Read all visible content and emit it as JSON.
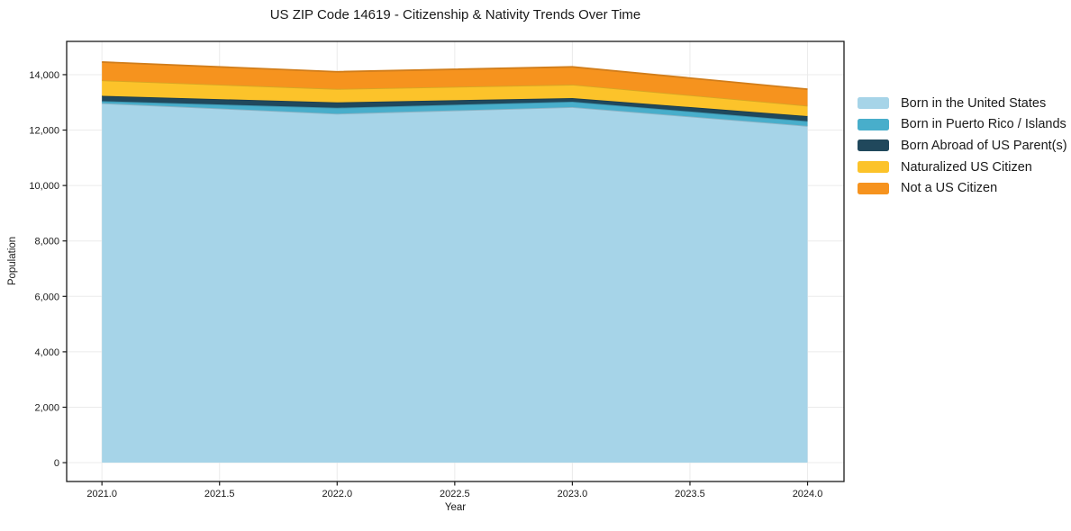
{
  "figure": {
    "title": "US ZIP Code 14619 - Citizenship & Nativity Trends Over Time",
    "xlabel": "Year",
    "ylabel": "Population"
  },
  "chart_data": {
    "type": "area",
    "stacked": true,
    "title": "US ZIP Code 14619 - Citizenship & Nativity Trends Over Time",
    "xlabel": "Year",
    "ylabel": "Population",
    "x": [
      2021,
      2022,
      2023,
      2024
    ],
    "series": [
      {
        "name": "Born in the United States",
        "color": "#a6d4e8",
        "values": [
          12970,
          12590,
          12830,
          12150
        ]
      },
      {
        "name": "Born in Puerto Rico / Islands",
        "color": "#48aecb",
        "values": [
          75,
          215,
          195,
          170
        ]
      },
      {
        "name": "Born Abroad of US Parent(s)",
        "color": "#20485c",
        "values": [
          190,
          195,
          130,
          185
        ]
      },
      {
        "name": "Naturalized US Citizen",
        "color": "#fcc32a",
        "values": [
          560,
          485,
          485,
          375
        ]
      },
      {
        "name": "Not a US Citizen",
        "color": "#f6931e",
        "values": [
          660,
          620,
          640,
          595
        ]
      }
    ],
    "stacked_totals": [
      14455,
      14105,
      14280,
      13475
    ],
    "xticks": {
      "values": [
        2021.0,
        2021.5,
        2022.0,
        2022.5,
        2023.0,
        2023.5,
        2024.0
      ],
      "labels": [
        "2021.0",
        "2021.5",
        "2022.0",
        "2022.5",
        "2023.0",
        "2023.5",
        "2024.0"
      ]
    },
    "yticks": {
      "values": [
        0,
        2000,
        4000,
        6000,
        8000,
        10000,
        12000,
        14000
      ],
      "labels": [
        "0",
        "2,000",
        "4,000",
        "6,000",
        "8,000",
        "10,000",
        "12,000",
        "14,000"
      ]
    },
    "xlim": [
      2020.85,
      2024.155
    ],
    "ylim": [
      -680,
      15200
    ],
    "grid": true,
    "grid_color": "#ebebeb",
    "spine_color": "#1a1a1a",
    "legend_position": "right outside, frameless"
  }
}
